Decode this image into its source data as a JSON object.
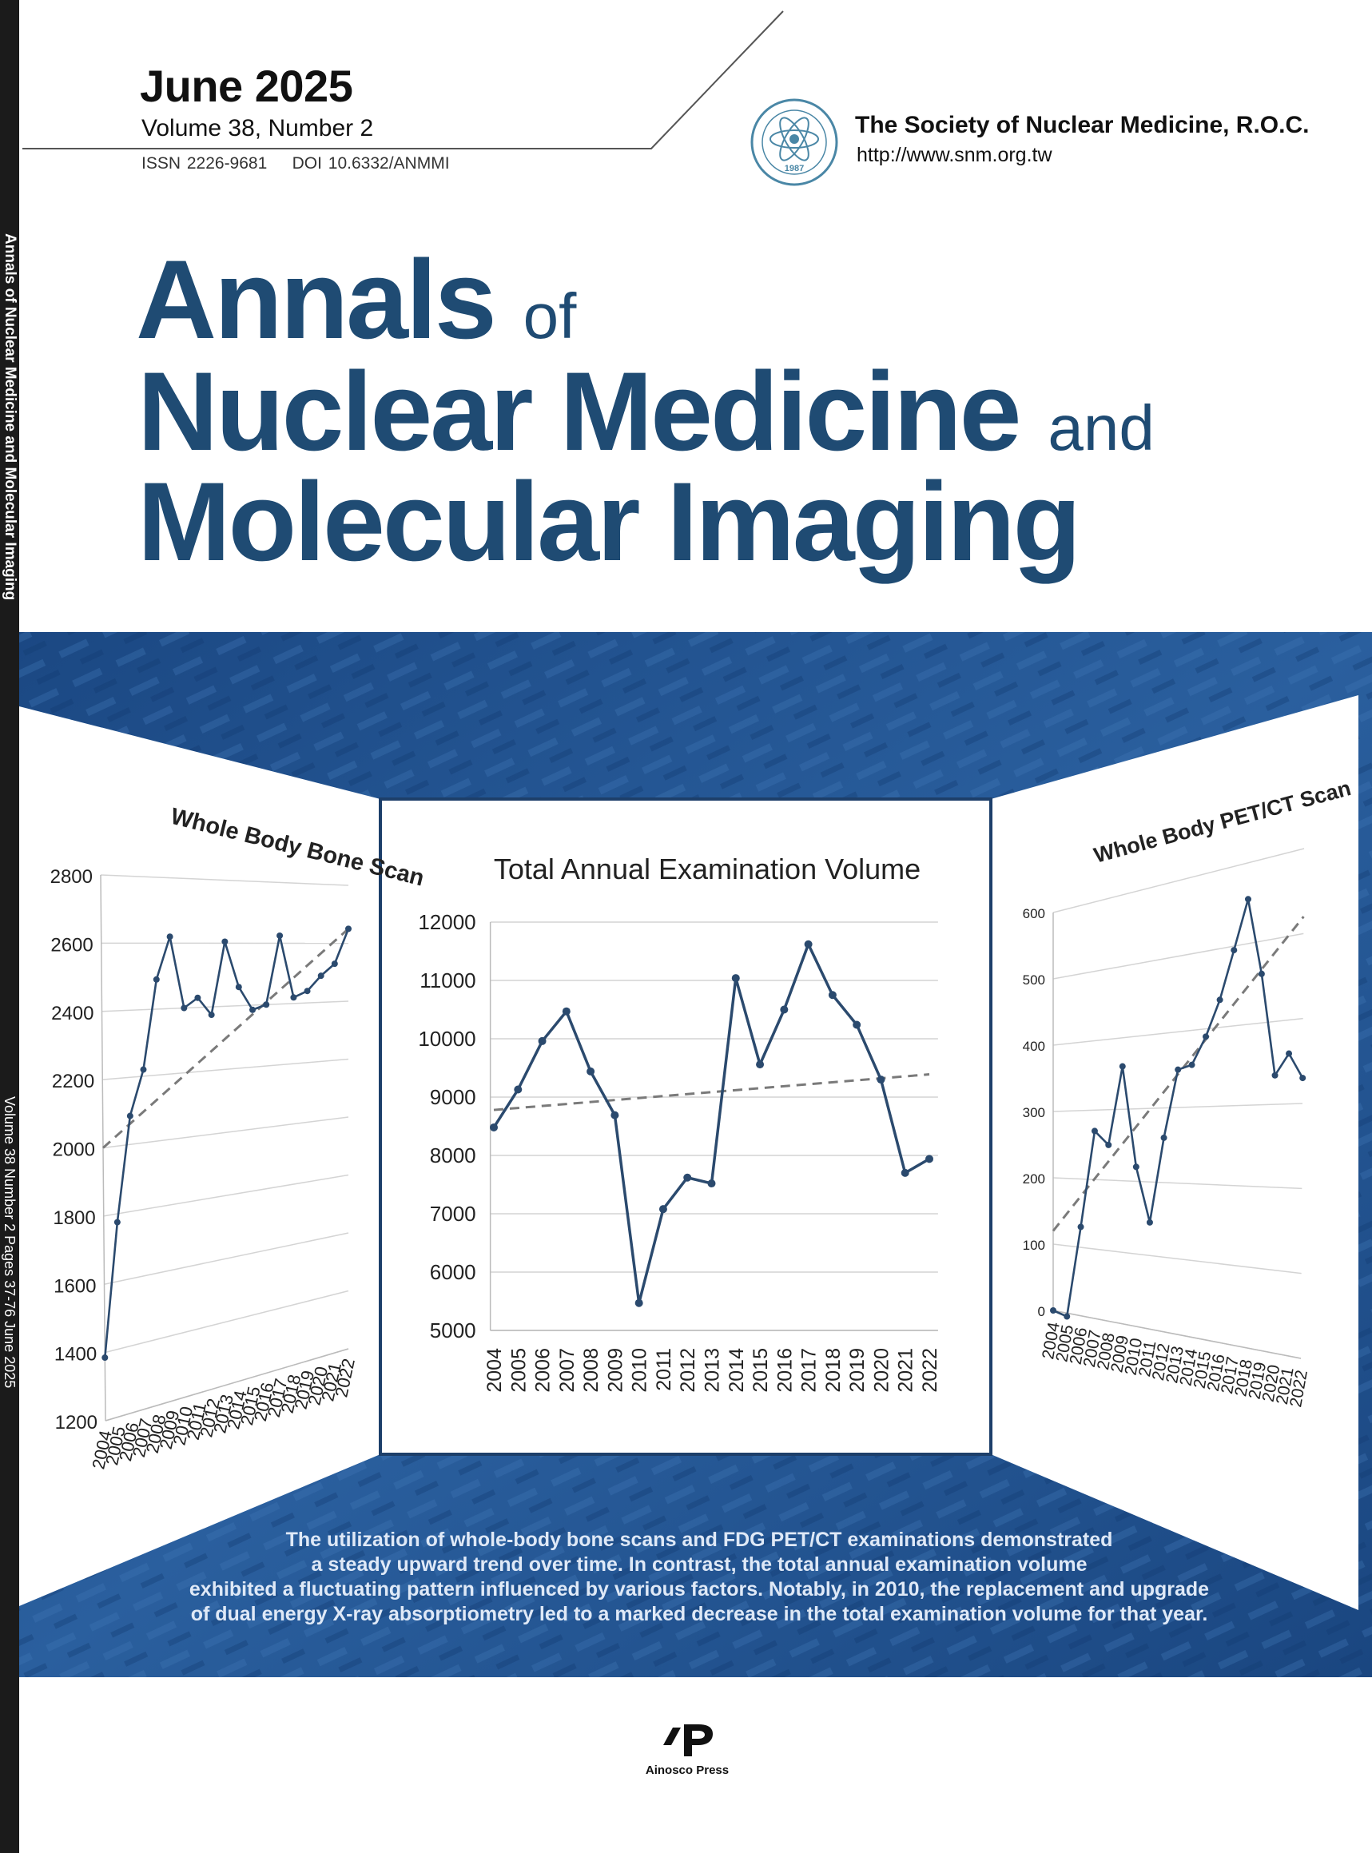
{
  "header": {
    "date": "June 2025",
    "volume": "Volume 38, Number 2",
    "issn": "ISSN 2226-9681",
    "doi": "DOI 10.6332/ANMMI",
    "society_name": "The Society of Nuclear Medicine, R.O.C.",
    "society_url": "http://www.snm.org.tw",
    "seal_year": "1987"
  },
  "spine": {
    "title": "Annals of Nuclear Medicine and Molecular Imaging",
    "issue": "Volume 38 Number 2 Pages 37-76 June 2025"
  },
  "title": {
    "line1": "Annals",
    "line1_small": "of",
    "line2": "Nuclear Medicine",
    "line2_small": "and",
    "line3": "Molecular Imaging"
  },
  "caption": {
    "line1": "The utilization of whole-body bone scans and FDG PET/CT examinations demonstrated",
    "line2": "a steady upward trend over time. In contrast, the total annual examination volume",
    "line3": "exhibited a fluctuating pattern influenced by various factors. Notably, in 2010, the replacement and upgrade",
    "line4": "of dual energy X-ray absorptiometry led to a marked decrease in the total examination volume for that year."
  },
  "publisher": {
    "name": "Ainosco Press"
  },
  "colors": {
    "title": "#1f4b73",
    "band": "#1e4f8d",
    "line": "#2b4a6e",
    "trend": "#7a7a7a"
  },
  "chart_data": [
    {
      "type": "line",
      "title": "Total Annual Examination Volume",
      "categories": [
        "2004",
        "2005",
        "2006",
        "2007",
        "2008",
        "2009",
        "2010",
        "2011",
        "2012",
        "2013",
        "2014",
        "2015",
        "2016",
        "2017",
        "2018",
        "2019",
        "2020",
        "2021",
        "2022"
      ],
      "values": [
        8480,
        9130,
        9960,
        10470,
        9440,
        8690,
        5470,
        7080,
        7620,
        7520,
        11040,
        9560,
        10500,
        11620,
        10750,
        10240,
        9300,
        7700,
        7940
      ],
      "trendline": [
        8780,
        9390
      ],
      "ylim": [
        5000,
        12000
      ],
      "yticks": [
        "5000",
        "6000",
        "7000",
        "8000",
        "9000",
        "10000",
        "11000",
        "12000"
      ],
      "grid": true
    },
    {
      "type": "line",
      "title": "Whole Body Bone Scan",
      "categories": [
        "2004",
        "2005",
        "2006",
        "2007",
        "2008",
        "2009",
        "2010",
        "2011",
        "2012",
        "2013",
        "2014",
        "2015",
        "2016",
        "2017",
        "2018",
        "2019",
        "2020",
        "2021",
        "2022"
      ],
      "values": [
        1385,
        1775,
        2085,
        2220,
        2490,
        2620,
        2400,
        2430,
        2375,
        2605,
        2460,
        2385,
        2400,
        2625,
        2420,
        2440,
        2490,
        2530,
        2650
      ],
      "trendline": [
        2000,
        2650
      ],
      "ylim": [
        1200,
        2800
      ],
      "yticks": [
        "1200",
        "1400",
        "1600",
        "1800",
        "2000",
        "2200",
        "2400",
        "2600",
        "2800"
      ],
      "grid": true
    },
    {
      "type": "line",
      "title": "Whole Body PET/CT Scan",
      "categories": [
        "2004",
        "2005",
        "2006",
        "2007",
        "2008",
        "2009",
        "2010",
        "2011",
        "2012",
        "2013",
        "2014",
        "2015",
        "2016",
        "2017",
        "2018",
        "2019",
        "2020",
        "2021",
        "2022"
      ],
      "values": [
        0,
        -5,
        130,
        270,
        250,
        360,
        220,
        145,
        260,
        350,
        355,
        390,
        435,
        495,
        555,
        460,
        335,
        360,
        330
      ],
      "trendline": [
        120,
        520
      ],
      "ylim": [
        0,
        600
      ],
      "yticks": [
        "0",
        "100",
        "200",
        "300",
        "400",
        "500",
        "600"
      ],
      "grid": true
    }
  ]
}
